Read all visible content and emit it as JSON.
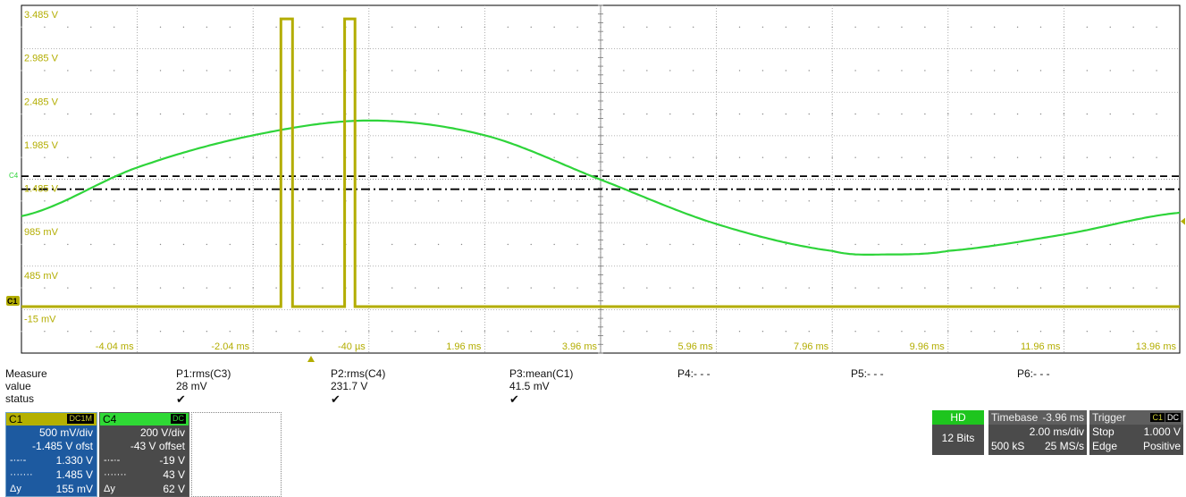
{
  "scope": {
    "colors": {
      "c1": "#b3ad00",
      "c4": "#2ed43a",
      "grid": "#9a9a9a",
      "dash": "#000000"
    },
    "y_labels": [
      "3.485 V",
      "2.985 V",
      "2.485 V",
      "1.985 V",
      "1.485 V",
      "985 mV",
      "485 mV",
      "-15 mV"
    ],
    "x_labels": [
      "-4.04 ms",
      "-2.04 ms",
      "-40 µs",
      "1.96 ms",
      "3.96 ms",
      "5.96 ms",
      "7.96 ms",
      "9.96 ms",
      "11.96 ms",
      "13.96 ms"
    ],
    "c4_marker": "C4",
    "c1_marker": "C1"
  },
  "chart_data": {
    "type": "line",
    "xlim": [
      -5.04,
      14.96
    ],
    "ylim": [
      -0.515,
      3.485
    ],
    "x_unit": "ms",
    "y_unit": "V",
    "series": [
      {
        "name": "C4",
        "points": [
          [
            -5.04,
            1.06
          ],
          [
            -3.04,
            1.62
          ],
          [
            -1.04,
            1.99
          ],
          [
            0.96,
            2.16
          ],
          [
            2.96,
            1.99
          ],
          [
            4.96,
            1.48
          ],
          [
            6.96,
            0.97
          ],
          [
            8.96,
            0.66
          ],
          [
            9.96,
            0.62
          ],
          [
            10.96,
            0.66
          ],
          [
            12.96,
            0.85
          ],
          [
            14.96,
            1.1
          ]
        ]
      },
      {
        "name": "C1",
        "points": [
          [
            -5.04,
            0.02
          ],
          [
            -0.56,
            0.02
          ],
          [
            -0.56,
            3.33
          ],
          [
            -0.36,
            3.33
          ],
          [
            -0.36,
            0.02
          ],
          [
            0.54,
            0.02
          ],
          [
            0.54,
            3.33
          ],
          [
            0.72,
            3.33
          ],
          [
            0.72,
            0.02
          ],
          [
            14.96,
            0.02
          ]
        ]
      }
    ],
    "reference_lines": [
      1.52,
      1.37
    ]
  },
  "measure": {
    "headers": [
      "Measure",
      "P1:rms(C3)",
      "P2:rms(C4)",
      "P3:mean(C1)",
      "P4:- - -",
      "P5:- - -",
      "P6:- - -"
    ],
    "value_label": "value",
    "values": [
      "28 mV",
      "231.7 V",
      "41.5 mV"
    ],
    "status_label": "status",
    "status": [
      "✔",
      "✔",
      "✔"
    ]
  },
  "c1": {
    "name": "C1",
    "tag": "DC1M",
    "scale": "500 mV/div",
    "offset": "-1.485 V ofst",
    "cursor1_sym": "-·-·-",
    "cursor1": "1.330 V",
    "cursor2_sym": "·······",
    "cursor2": "1.485 V",
    "delta_label": "Δy",
    "delta": "155 mV"
  },
  "c4": {
    "name": "C4",
    "tag": "DC",
    "scale": "200 V/div",
    "offset": "-43 V offset",
    "cursor1_sym": "-·-·-",
    "cursor1": "-19 V",
    "cursor2_sym": "·······",
    "cursor2": "43 V",
    "delta_label": "Δy",
    "delta": "62 V"
  },
  "acq": {
    "hd": "HD",
    "bits": "12 Bits"
  },
  "timebase": {
    "title": "Timebase",
    "value": "-3.96 ms",
    "scale": "2.00 ms/div",
    "samples": "500 kS",
    "rate": "25 MS/s"
  },
  "trigger": {
    "title": "Trigger",
    "src": "C1",
    "coupling": "DC",
    "mode": "Stop",
    "level": "1.000 V",
    "type": "Edge",
    "slope": "Positive"
  }
}
